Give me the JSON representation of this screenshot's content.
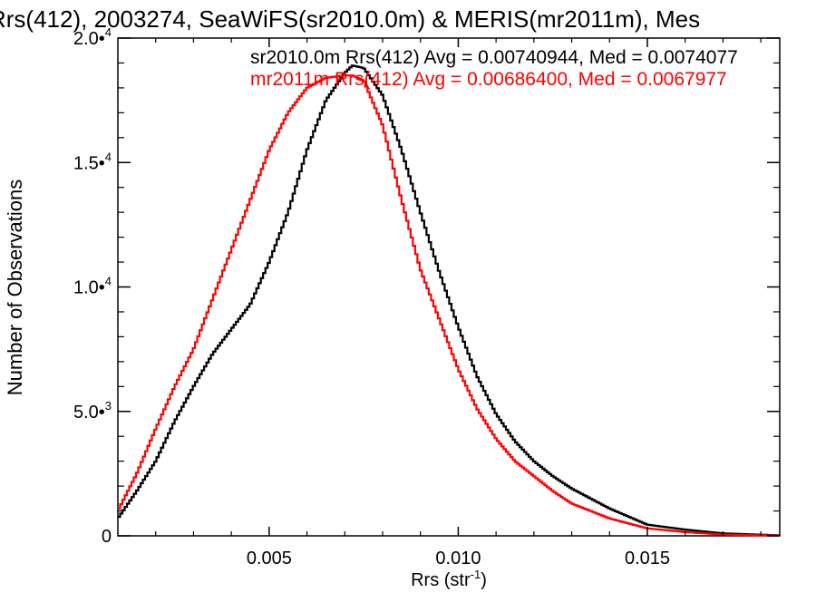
{
  "chart_data": {
    "type": "line",
    "title": "Rrs(412), 2003274, SeaWiFS(sr2010.0m) & MERIS(mr2011m), Mes",
    "xlabel": "Rrs (str",
    "xlabel_sup": "-1",
    "xlabel_tail": ")",
    "ylabel": "Number of Observations",
    "xlim": [
      0.001,
      0.0185
    ],
    "ylim": [
      0,
      20000
    ],
    "xticks": [
      {
        "value": 0.005,
        "label": "0.005"
      },
      {
        "value": 0.01,
        "label": "0.010"
      },
      {
        "value": 0.015,
        "label": "0.015"
      }
    ],
    "yticks": [
      {
        "value": 0,
        "mant": "0",
        "exp": ""
      },
      {
        "value": 5000,
        "mant": "5.0•",
        "exp": "3"
      },
      {
        "value": 10000,
        "mant": "1.0•",
        "exp": "4"
      },
      {
        "value": 15000,
        "mant": "1.5•",
        "exp": "4"
      },
      {
        "value": 20000,
        "mant": "2.0•",
        "exp": "4"
      }
    ],
    "series": [
      {
        "name": "sr2010.0m",
        "color": "#000000",
        "label": "sr2010.0m Rrs(412) Avg = 0.00740944, Med = 0.0074077",
        "x": [
          0.001,
          0.0015,
          0.002,
          0.0025,
          0.003,
          0.0035,
          0.004,
          0.0045,
          0.005,
          0.0055,
          0.006,
          0.0065,
          0.007,
          0.0072,
          0.0075,
          0.008,
          0.0085,
          0.009,
          0.0095,
          0.01,
          0.0105,
          0.011,
          0.0115,
          0.012,
          0.0125,
          0.013,
          0.014,
          0.015,
          0.016,
          0.017,
          0.0185
        ],
        "y": [
          700,
          1800,
          3000,
          4600,
          6000,
          7300,
          8300,
          9300,
          11000,
          13000,
          15500,
          17500,
          18600,
          18900,
          18800,
          17700,
          15500,
          13000,
          10600,
          8400,
          6400,
          4900,
          3800,
          3000,
          2400,
          1900,
          1100,
          450,
          250,
          100,
          20
        ]
      },
      {
        "name": "mr2011m",
        "color": "#ff0000",
        "label": "mr2011m Rrs(412) Avg = 0.00686400, Med = 0.0067977",
        "x": [
          0.001,
          0.0015,
          0.002,
          0.0025,
          0.003,
          0.0035,
          0.004,
          0.0045,
          0.005,
          0.0055,
          0.006,
          0.0065,
          0.007,
          0.0072,
          0.0075,
          0.008,
          0.0085,
          0.009,
          0.0095,
          0.01,
          0.0105,
          0.011,
          0.0115,
          0.012,
          0.0125,
          0.013,
          0.014,
          0.015,
          0.016,
          0.017,
          0.0185
        ],
        "y": [
          1000,
          2500,
          4300,
          6000,
          7500,
          9500,
          11500,
          13500,
          15500,
          17000,
          18000,
          18400,
          18500,
          18500,
          18300,
          16500,
          13500,
          10700,
          8700,
          6700,
          5100,
          3900,
          3000,
          2400,
          1800,
          1300,
          700,
          300,
          150,
          50,
          10
        ]
      }
    ]
  }
}
